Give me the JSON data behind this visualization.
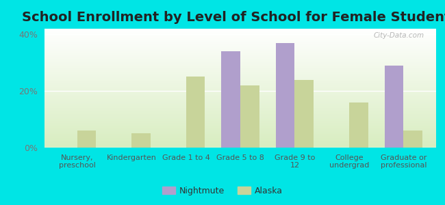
{
  "title": "School Enrollment by Level of School for Female Students",
  "categories": [
    "Nursery,\npreschool",
    "Kindergarten",
    "Grade 1 to 4",
    "Grade 5 to 8",
    "Grade 9 to\n12",
    "College\nundergrad",
    "Graduate or\nprofessional"
  ],
  "nightmute": [
    0,
    0,
    0,
    34,
    37,
    0,
    29
  ],
  "alaska": [
    6,
    5,
    25,
    22,
    24,
    16,
    6
  ],
  "nightmute_color": "#b09fcc",
  "alaska_color": "#c8d49a",
  "background_color": "#00e5e5",
  "plot_bg_top": "#d8edc0",
  "plot_bg_bottom": "#ffffff",
  "ylim": [
    0,
    42
  ],
  "yticks": [
    0,
    20,
    40
  ],
  "ytick_labels": [
    "0%",
    "20%",
    "40%"
  ],
  "bar_width": 0.35,
  "title_fontsize": 14,
  "legend_labels": [
    "Nightmute",
    "Alaska"
  ],
  "watermark": "City-Data.com"
}
